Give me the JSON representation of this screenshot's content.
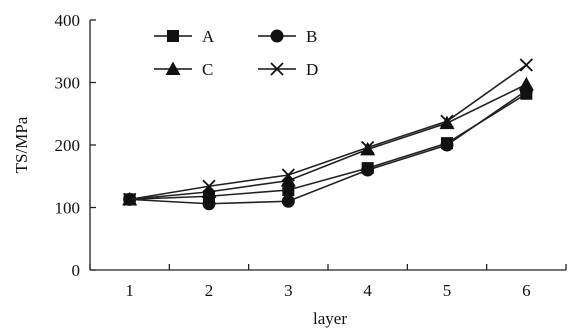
{
  "chart_data": {
    "type": "line",
    "xlabel": "layer",
    "ylabel": "TS/MPa",
    "x": [
      1,
      2,
      3,
      4,
      5,
      6
    ],
    "xlim": [
      0.5,
      6.5
    ],
    "ylim": [
      0,
      400
    ],
    "yticks": [
      0,
      100,
      200,
      300,
      400
    ],
    "xticks": [
      1,
      2,
      3,
      4,
      5,
      6
    ],
    "grid": false,
    "legend_position": "top-left",
    "series": [
      {
        "name": "A",
        "marker": "square",
        "values": [
          113,
          118,
          128,
          163,
          203,
          282
        ]
      },
      {
        "name": "B",
        "marker": "circle",
        "values": [
          113,
          106,
          110,
          160,
          200,
          287
        ]
      },
      {
        "name": "C",
        "marker": "triangle",
        "values": [
          113,
          125,
          143,
          193,
          235,
          297
        ]
      },
      {
        "name": "D",
        "marker": "x",
        "values": [
          113,
          134,
          152,
          196,
          238,
          328
        ]
      }
    ]
  }
}
